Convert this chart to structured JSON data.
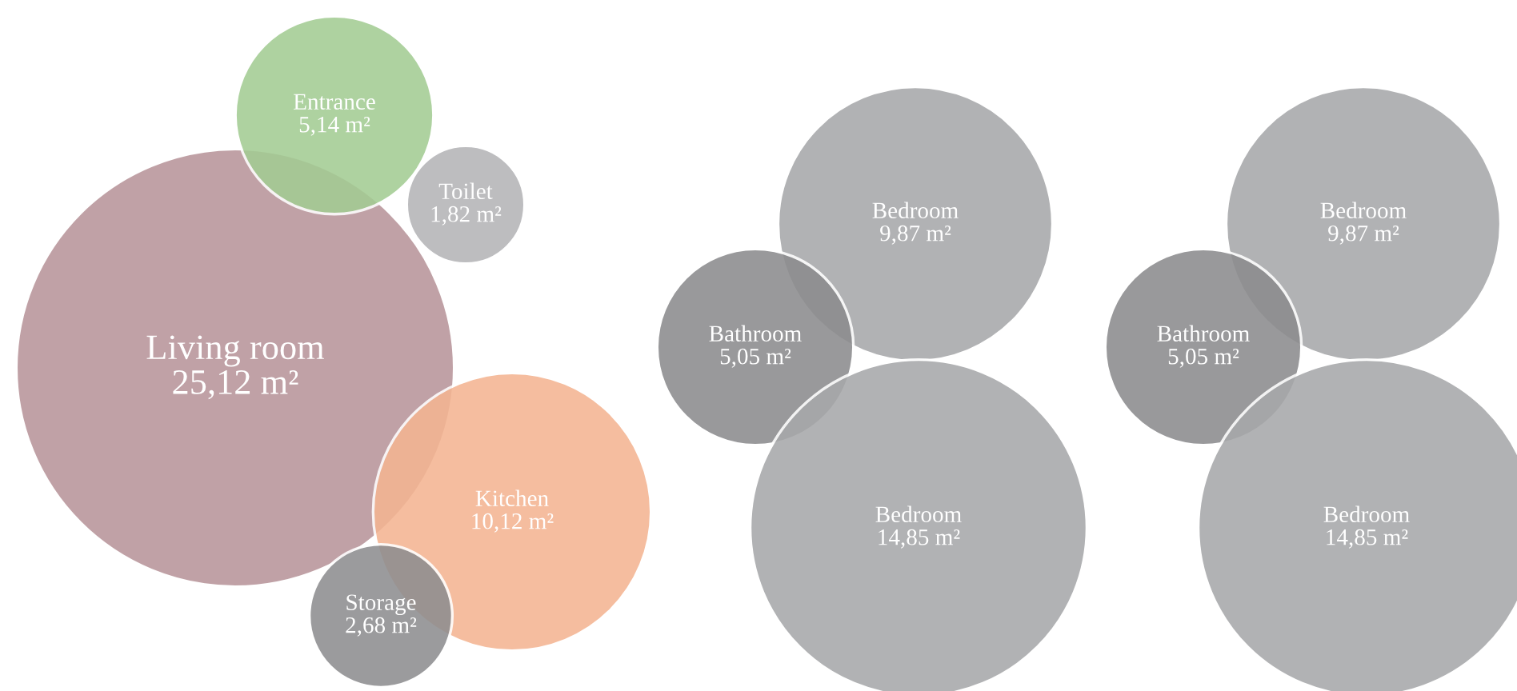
{
  "chart_data": [
    {
      "type": "other",
      "categories": [
        "Living room",
        "Entrance",
        "Toilet",
        "Kitchen",
        "Storage"
      ],
      "values": [
        25.12,
        5.14,
        1.82,
        10.12,
        2.68
      ],
      "value_labels": [
        "25,12 m²",
        "5,14 m²",
        "1,82 m²",
        "10,12 m²",
        "2,68 m²"
      ],
      "colors": [
        "#b8959a",
        "#a3cc93",
        "#b4b4b7",
        "#f4b592",
        "#8e8e90"
      ]
    },
    {
      "type": "other",
      "categories": [
        "Bedroom",
        "Bathroom",
        "Bedroom"
      ],
      "values": [
        9.87,
        5.05,
        14.85
      ],
      "value_labels": [
        "9,87 m²",
        "5,05 m²",
        "14,85 m²"
      ],
      "colors": [
        "#a7a8aa",
        "#8c8c8e",
        "#a7a8aa"
      ]
    },
    {
      "type": "other",
      "categories": [
        "Bedroom",
        "Bathroom",
        "Bedroom"
      ],
      "values": [
        9.87,
        5.05,
        14.85
      ],
      "value_labels": [
        "9,87 m²",
        "5,05 m²",
        "14,85 m²"
      ],
      "colors": [
        "#a7a8aa",
        "#8c8c8e",
        "#a7a8aa"
      ]
    }
  ]
}
